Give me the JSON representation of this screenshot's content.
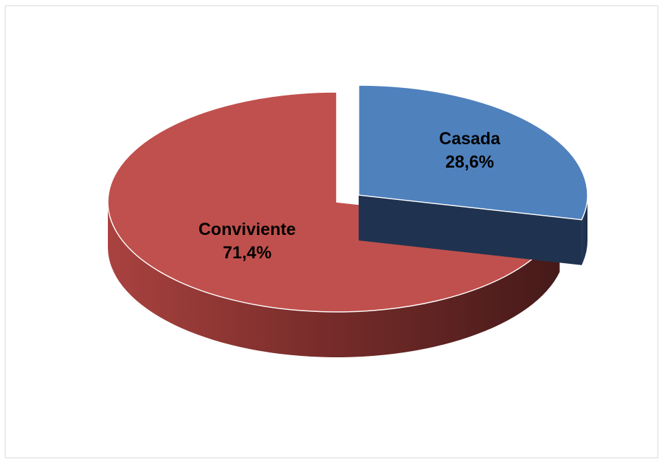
{
  "chart_data": {
    "type": "pie",
    "style": "3d-exploded",
    "slices": [
      {
        "name": "Casada",
        "value": 28.6,
        "value_label": "28,6%",
        "color": "#4f81bd",
        "exploded": true
      },
      {
        "name": "Conviviente",
        "value": 71.4,
        "value_label": "71,4%",
        "color": "#c0504d",
        "exploded": false
      }
    ],
    "title": "",
    "legend": "none"
  }
}
